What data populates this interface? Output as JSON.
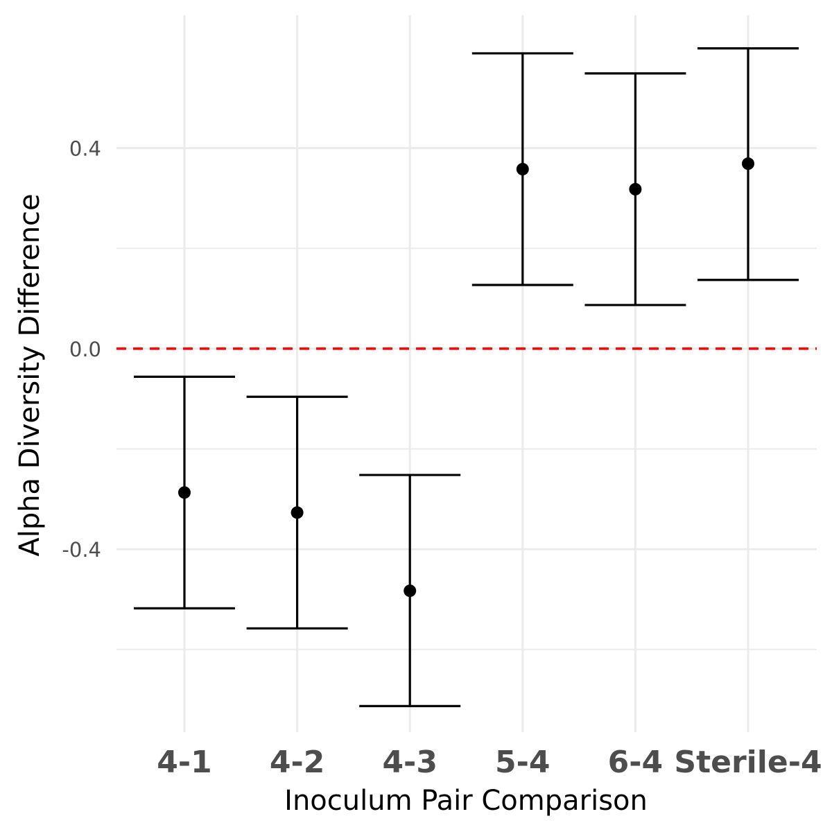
{
  "chart_data": {
    "type": "errorbar",
    "title": "",
    "xlabel": "Inoculum Pair Comparison",
    "ylabel": "Alpha Diversity Difference",
    "categories": [
      "4-1",
      "4-2",
      "4-3",
      "5-4",
      "6-4",
      "Sterile-4"
    ],
    "series": [
      {
        "estimate": [
          -0.287,
          -0.327,
          -0.483,
          0.358,
          0.318,
          0.369
        ],
        "lower": [
          -0.518,
          -0.558,
          -0.713,
          0.127,
          0.087,
          0.137
        ],
        "upper": [
          -0.056,
          -0.096,
          -0.252,
          0.589,
          0.549,
          0.599
        ]
      }
    ],
    "reference_line": {
      "y": 0.0,
      "style": "dashed",
      "color": "#ff0000"
    },
    "ylim": [
      -0.765,
      0.665
    ],
    "yticks": [
      0.4,
      0.0,
      -0.4
    ],
    "ytick_labels": [
      "0.4",
      "0.0",
      "-0.4"
    ],
    "y_minor_gridlines": [
      0.2,
      -0.2,
      -0.6
    ],
    "grid": true,
    "legend": "none",
    "colors": {
      "points": "#000000",
      "errorbars": "#000000",
      "grid": "#ebebeb",
      "tick_text": "#4d4d4d"
    }
  }
}
